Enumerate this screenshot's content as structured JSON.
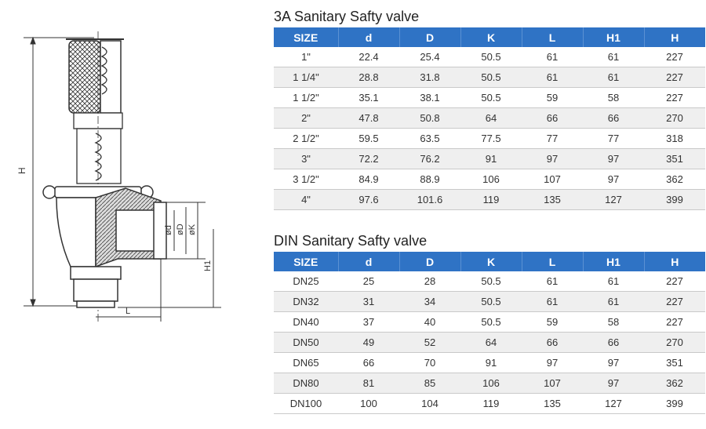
{
  "drawing": {
    "labels": {
      "h": "H",
      "d": "ød",
      "D": "øD",
      "K": "øK",
      "h1": "H1",
      "l": "L"
    }
  },
  "sections": [
    {
      "title": "3A Sanitary Safty valve",
      "headers": [
        "SIZE",
        "d",
        "D",
        "K",
        "L",
        "H1",
        "H"
      ],
      "rows": [
        [
          "1\"",
          "22.4",
          "25.4",
          "50.5",
          "61",
          "61",
          "227"
        ],
        [
          "1 1/4\"",
          "28.8",
          "31.8",
          "50.5",
          "61",
          "61",
          "227"
        ],
        [
          "1 1/2\"",
          "35.1",
          "38.1",
          "50.5",
          "59",
          "58",
          "227"
        ],
        [
          "2\"",
          "47.8",
          "50.8",
          "64",
          "66",
          "66",
          "270"
        ],
        [
          "2 1/2\"",
          "59.5",
          "63.5",
          "77.5",
          "77",
          "77",
          "318"
        ],
        [
          "3\"",
          "72.2",
          "76.2",
          "91",
          "97",
          "97",
          "351"
        ],
        [
          "3 1/2\"",
          "84.9",
          "88.9",
          "106",
          "107",
          "97",
          "362"
        ],
        [
          "4\"",
          "97.6",
          "101.6",
          "119",
          "135",
          "127",
          "399"
        ]
      ]
    },
    {
      "title": "DIN Sanitary Safty valve",
      "headers": [
        "SIZE",
        "d",
        "D",
        "K",
        "L",
        "H1",
        "H"
      ],
      "rows": [
        [
          "DN25",
          "25",
          "28",
          "50.5",
          "61",
          "61",
          "227"
        ],
        [
          "DN32",
          "31",
          "34",
          "50.5",
          "61",
          "61",
          "227"
        ],
        [
          "DN40",
          "37",
          "40",
          "50.5",
          "59",
          "58",
          "227"
        ],
        [
          "DN50",
          "49",
          "52",
          "64",
          "66",
          "66",
          "270"
        ],
        [
          "DN65",
          "66",
          "70",
          "91",
          "97",
          "97",
          "351"
        ],
        [
          "DN80",
          "81",
          "85",
          "106",
          "107",
          "97",
          "362"
        ],
        [
          "DN100",
          "100",
          "104",
          "119",
          "135",
          "127",
          "399"
        ]
      ]
    }
  ]
}
